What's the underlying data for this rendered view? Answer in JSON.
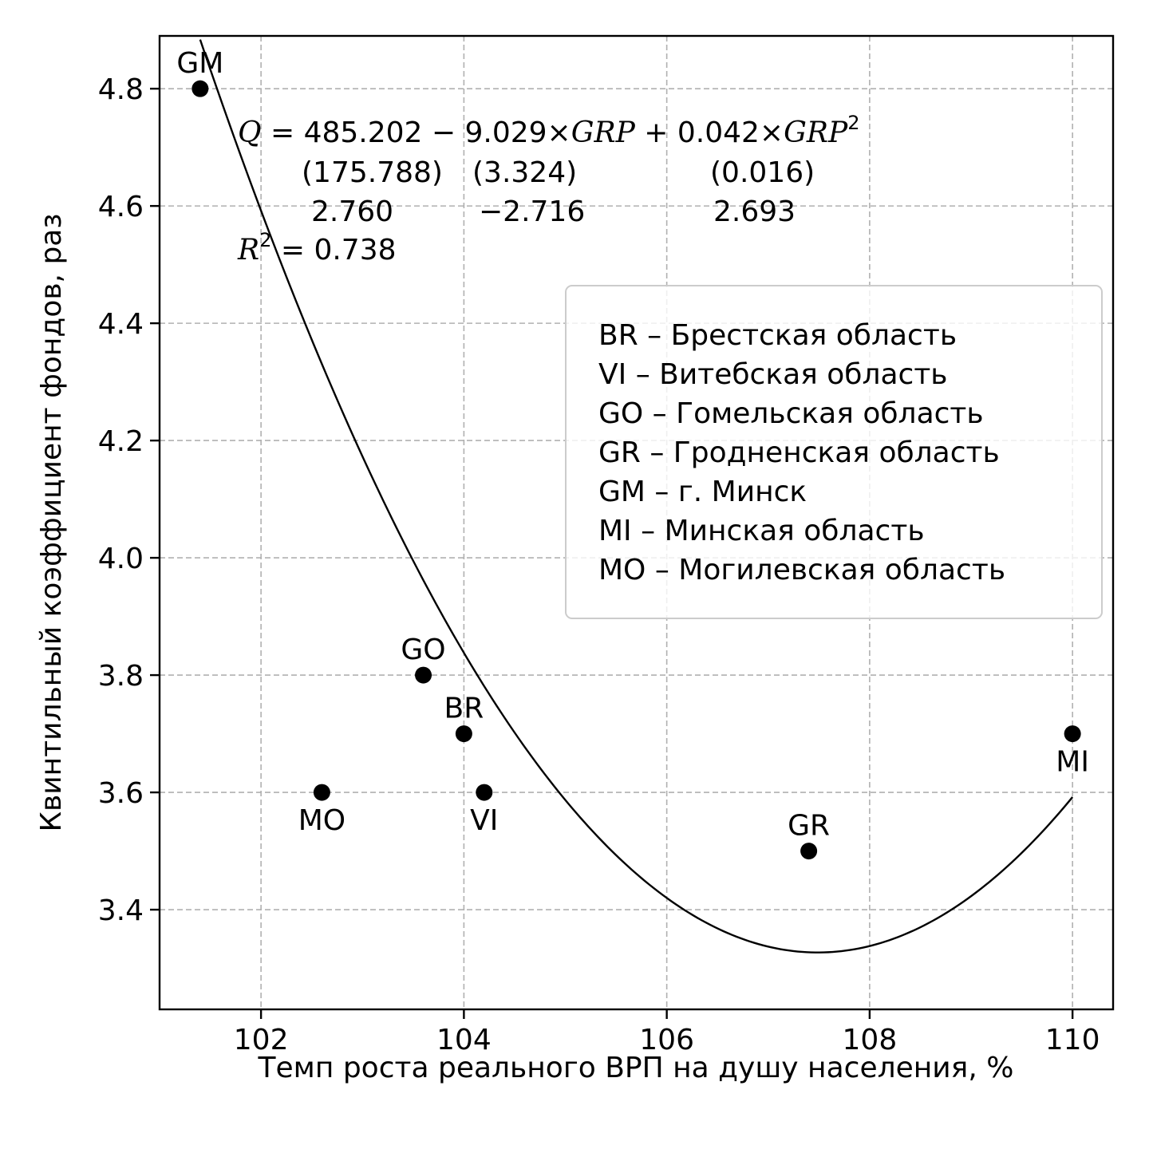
{
  "chart_data": {
    "type": "scatter",
    "xlabel": "Темп роста реального ВРП на душу населения, %",
    "ylabel": "Квинтильный коэффициент фондов, раз",
    "xlim": [
      101.0,
      110.4
    ],
    "ylim": [
      3.23,
      4.89
    ],
    "xticks": [
      102,
      104,
      106,
      108,
      110
    ],
    "yticks": [
      3.4,
      3.6,
      3.8,
      4.0,
      4.2,
      4.4,
      4.6,
      4.8
    ],
    "xtick_labels": [
      "102",
      "104",
      "106",
      "108",
      "110"
    ],
    "ytick_labels": [
      "3.4",
      "3.6",
      "3.8",
      "4.0",
      "4.2",
      "4.4",
      "4.6",
      "4.8"
    ],
    "grid": true,
    "points": [
      {
        "label": "GM",
        "x": 101.4,
        "y": 4.8,
        "label_pos": "above"
      },
      {
        "label": "GO",
        "x": 103.6,
        "y": 3.8,
        "label_pos": "above"
      },
      {
        "label": "BR",
        "x": 104.0,
        "y": 3.7,
        "label_pos": "above"
      },
      {
        "label": "MO",
        "x": 102.6,
        "y": 3.6,
        "label_pos": "below"
      },
      {
        "label": "VI",
        "x": 104.2,
        "y": 3.6,
        "label_pos": "below"
      },
      {
        "label": "GR",
        "x": 107.4,
        "y": 3.5,
        "label_pos": "above"
      },
      {
        "label": "MI",
        "x": 110.0,
        "y": 3.7,
        "label_pos": "below"
      }
    ],
    "fit": {
      "type": "quadratic",
      "coefficients": [
        485.202,
        -9.029,
        0.042
      ],
      "x_range": [
        101.4,
        110.0
      ]
    },
    "equation": {
      "line1": {
        "lhs": "Q",
        "eq": " = 485.202 − 9.029×",
        "var1": "GRP",
        "mid": " + 0.042×",
        "var2": "GRP",
        "sup": "2"
      },
      "std_errors": [
        "(175.788)",
        "(3.324)",
        "(0.016)"
      ],
      "t_stats": [
        "2.760",
        "−2.716",
        "2.693"
      ],
      "r2": {
        "var": "R",
        "sup": "2",
        "value": " = 0.738"
      }
    },
    "legend": {
      "placement": "center-right",
      "items": [
        "BR – Брестская область",
        "VI – Витебская область",
        "GO – Гомельская область",
        "GR – Гродненская область",
        "GM – г. Минск",
        "MI – Минская область",
        "MO – Могилевская область"
      ]
    }
  }
}
